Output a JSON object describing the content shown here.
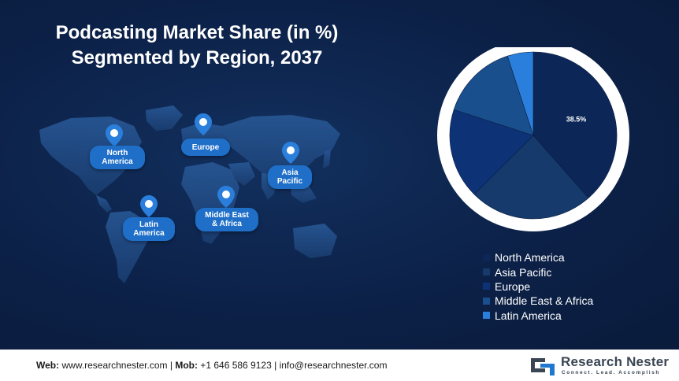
{
  "title": {
    "line1": "Podcasting Market Share (in %)",
    "line2": "Segmented by Region, 2037"
  },
  "map": {
    "regions": [
      {
        "key": "north_america",
        "label": "North\nAmerica"
      },
      {
        "key": "europe",
        "label": "Europe"
      },
      {
        "key": "asia_pacific",
        "label": "Asia\nPacific"
      },
      {
        "key": "latin_america",
        "label": "Latin\nAmerica"
      },
      {
        "key": "middle_east_africa",
        "label": "Middle East\n& Africa"
      }
    ]
  },
  "chart_data": {
    "type": "pie",
    "title": "Podcasting Market Share (in %) Segmented by Region, 2037",
    "categories": [
      "North America",
      "Asia Pacific",
      "Europe",
      "Middle East & Africa",
      "Latin America"
    ],
    "values": [
      38.5,
      24.0,
      17.5,
      15.0,
      5.0
    ],
    "data_labels": [
      "38.5%",
      "",
      "",
      "",
      ""
    ],
    "colors": [
      "#0b2657",
      "#153a6b",
      "#0d3276",
      "#1a4f8d",
      "#2b7fdc"
    ],
    "legend_position": "bottom"
  },
  "footer": {
    "web_label": "Web:",
    "web_value": "www.researchnester.com",
    "sep1": "|",
    "mob_label": "Mob:",
    "mob_value": "+1 646 586 9123",
    "sep2": "|",
    "email": "info@researchnester.com",
    "logo_name": "Research Nester",
    "logo_tagline": "Connect. Lead. Accomplish"
  }
}
